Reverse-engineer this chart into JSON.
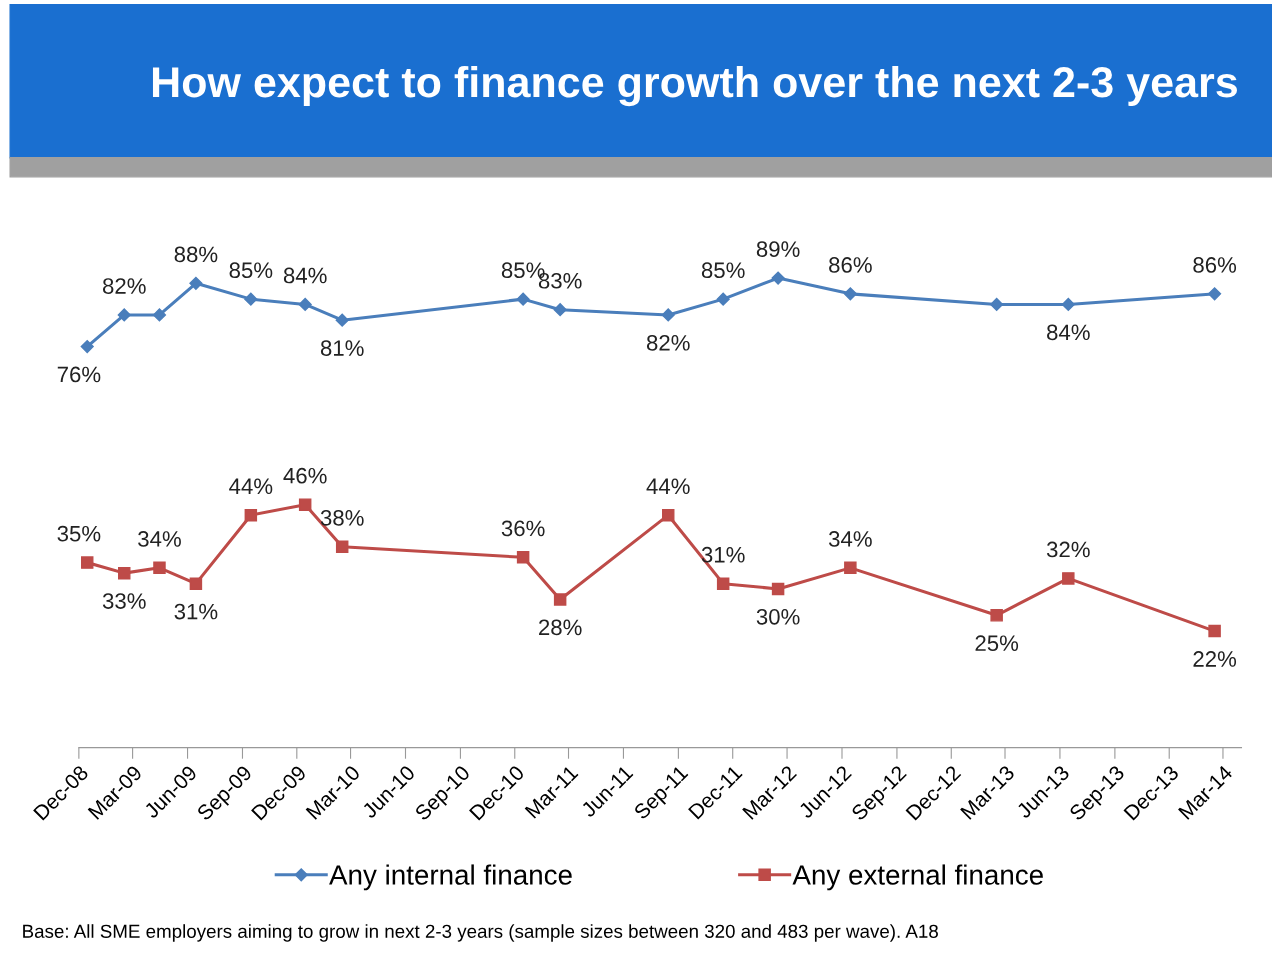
{
  "chart_data": {
    "type": "line",
    "title": "How expect to finance growth over the next 2-3 years",
    "x": [
      "2008-12-15",
      "2009-02-15",
      "2009-04-15",
      "2009-06-15",
      "2009-09-15",
      "2009-12-15",
      "2010-02-15",
      "2010-12-15",
      "2011-02-15",
      "2011-08-15",
      "2011-11-15",
      "2012-02-15",
      "2012-06-15",
      "2013-02-15",
      "2013-06-15",
      "2014-02-15"
    ],
    "series": [
      {
        "name": "Any internal finance",
        "color": "#4a7ebb",
        "marker": "diamond",
        "values": [
          76,
          82,
          82,
          88,
          85,
          84,
          81,
          85,
          83,
          82,
          85,
          89,
          86,
          84,
          84,
          86
        ],
        "value_labels": [
          "76%",
          "82%",
          null,
          "88%",
          "85%",
          "84%",
          "81%",
          "85%",
          "83%",
          "82%",
          "85%",
          "89%",
          "86%",
          null,
          "84%",
          "86%"
        ]
      },
      {
        "name": "Any external finance",
        "color": "#be4b48",
        "marker": "square",
        "values": [
          35,
          33,
          34,
          31,
          44,
          46,
          38,
          36,
          28,
          44,
          31,
          30,
          34,
          25,
          32,
          22
        ],
        "value_labels": [
          "35%",
          "33%",
          "34%",
          "31%",
          "44%",
          "46%",
          "38%",
          "36%",
          "28%",
          "44%",
          "31%",
          "30%",
          "34%",
          "25%",
          "32%",
          "22%"
        ]
      }
    ],
    "xlim": [
      "2008-12-01",
      "2014-04-01"
    ],
    "xticks": [
      {
        "value": "2008-12-01",
        "label": "Dec-08"
      },
      {
        "value": "2009-03-01",
        "label": "Mar-09"
      },
      {
        "value": "2009-06-01",
        "label": "Jun-09"
      },
      {
        "value": "2009-09-01",
        "label": "Sep-09"
      },
      {
        "value": "2009-12-01",
        "label": "Dec-09"
      },
      {
        "value": "2010-03-01",
        "label": "Mar-10"
      },
      {
        "value": "2010-06-01",
        "label": "Jun-10"
      },
      {
        "value": "2010-09-01",
        "label": "Sep-10"
      },
      {
        "value": "2010-12-01",
        "label": "Dec-10"
      },
      {
        "value": "2011-03-01",
        "label": "Mar-11"
      },
      {
        "value": "2011-06-01",
        "label": "Jun-11"
      },
      {
        "value": "2011-09-01",
        "label": "Sep-11"
      },
      {
        "value": "2011-12-01",
        "label": "Dec-11"
      },
      {
        "value": "2012-03-01",
        "label": "Mar-12"
      },
      {
        "value": "2012-06-01",
        "label": "Jun-12"
      },
      {
        "value": "2012-09-01",
        "label": "Sep-12"
      },
      {
        "value": "2012-12-01",
        "label": "Dec-12"
      },
      {
        "value": "2013-03-01",
        "label": "Mar-13"
      },
      {
        "value": "2013-06-01",
        "label": "Jun-13"
      },
      {
        "value": "2013-09-01",
        "label": "Sep-13"
      },
      {
        "value": "2013-12-01",
        "label": "Dec-13"
      },
      {
        "value": "2014-03-01",
        "label": "Mar-14"
      }
    ],
    "tick_labels": "x",
    "legend": "bottom",
    "grid": false,
    "line_style": "solid",
    "annotations": [
      "Base: All SME employers aiming to grow in next 2-3 years (sample sizes between 320 and 483 per wave). A18"
    ]
  }
}
